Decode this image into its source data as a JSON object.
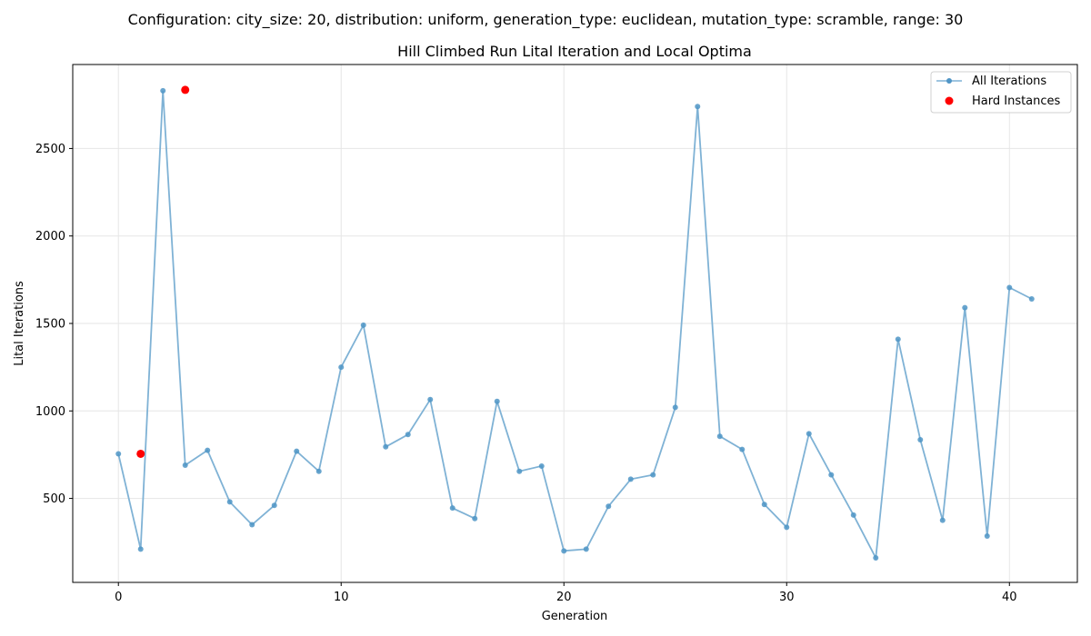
{
  "suptitle": "Configuration: city_size: 20, distribution: uniform, generation_type: euclidean, mutation_type: scramble, range: 30",
  "chart_data": {
    "type": "line",
    "title": "Hill Climbed Run Lital Iteration and Local Optima",
    "xlabel": "Generation",
    "ylabel": "Lital Iterations",
    "xlim": [
      -2.05,
      43.05
    ],
    "ylim": [
      20,
      2980
    ],
    "xticks": [
      0,
      10,
      20,
      30,
      40
    ],
    "yticks": [
      500,
      1000,
      1500,
      2000,
      2500
    ],
    "grid": true,
    "legend_position": "top-right",
    "colors": {
      "line": "#7fb2d5",
      "marker": "#4f95c6",
      "hard": "#ff0000"
    },
    "series": [
      {
        "name": "All Iterations",
        "kind": "line+markers",
        "x": [
          0,
          1,
          2,
          3,
          4,
          5,
          6,
          7,
          8,
          9,
          10,
          11,
          12,
          13,
          14,
          15,
          16,
          17,
          18,
          19,
          20,
          21,
          22,
          23,
          24,
          25,
          26,
          27,
          28,
          29,
          30,
          31,
          32,
          33,
          34,
          35,
          36,
          37,
          38,
          39,
          40,
          41
        ],
        "y": [
          755,
          210,
          2830,
          690,
          775,
          480,
          350,
          460,
          770,
          655,
          1250,
          1490,
          795,
          865,
          1065,
          445,
          385,
          1055,
          655,
          685,
          200,
          210,
          455,
          610,
          635,
          1020,
          2740,
          855,
          780,
          465,
          335,
          870,
          635,
          405,
          160,
          1410,
          835,
          375,
          1590,
          285,
          1705,
          1640
        ]
      },
      {
        "name": "Hard Instances",
        "kind": "scatter",
        "x": [
          1,
          3
        ],
        "y": [
          755,
          2835
        ]
      }
    ]
  }
}
